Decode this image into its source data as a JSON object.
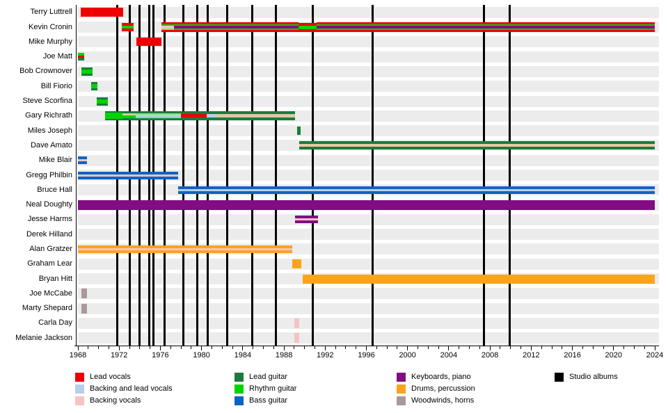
{
  "chart_data": {
    "type": "timeline",
    "x_axis": {
      "min": 1968,
      "max": 2024,
      "labels": [
        1968,
        1972,
        1976,
        1980,
        1984,
        1988,
        1992,
        1996,
        2000,
        2004,
        2008,
        2012,
        2016,
        2020,
        2024
      ],
      "minor_tick_every": 1
    },
    "palette": {
      "red": "#ee0000",
      "green": "#00d400",
      "palegreen": "#7fe97f",
      "darkgreen": "#1b7b3c",
      "blue": "#0d63c5",
      "lightblue": "#b7cdf0",
      "pink": "#f6c3c3",
      "purple": "#830b83",
      "orange": "#f8a51b",
      "woodwind": "#ab9999",
      "tan": "#d9c9a2",
      "peach": "#efc6a4",
      "black": "#000000"
    },
    "albums_years": [
      1971.8,
      1973.05,
      1973.95,
      1974.9,
      1975.35,
      1976.4,
      1978.2,
      1979.6,
      1980.6,
      1982.5,
      1984.95,
      1987.2,
      1990.8,
      1996.6,
      2007.4,
      2009.9
    ],
    "members": [
      {
        "name": "Terry Luttrell",
        "segments": [
          {
            "start": 1968.3,
            "end": 1972.4,
            "stripes": [
              [
                "red",
                13
              ]
            ]
          }
        ]
      },
      {
        "name": "Kevin Cronin",
        "segments": [
          {
            "start": 1972.25,
            "end": 1973.4,
            "stripes": [
              [
                "red",
                4
              ],
              [
                "green",
                4
              ],
              [
                "red",
                4
              ]
            ]
          },
          {
            "start": 1976.1,
            "end": 1977.3,
            "stripes": [
              [
                "red",
                3
              ],
              [
                "green",
                2
              ],
              [
                "pink",
                4
              ],
              [
                "palegreen",
                2
              ],
              [
                "red",
                3
              ]
            ]
          },
          {
            "start": 1977.3,
            "end": 1989.4,
            "stripes": [
              [
                "red",
                3
              ],
              [
                "green",
                2
              ],
              [
                "purple",
                4
              ],
              [
                "green",
                2
              ],
              [
                "red",
                3
              ]
            ]
          },
          {
            "start": 1989.4,
            "end": 1991.2,
            "stripes": [
              [
                "red",
                4
              ],
              [
                "green",
                5
              ],
              [
                "red",
                4
              ]
            ]
          },
          {
            "start": 1991.2,
            "end": 2024,
            "stripes": [
              [
                "red",
                3
              ],
              [
                "green",
                2
              ],
              [
                "purple",
                4
              ],
              [
                "green",
                2
              ],
              [
                "red",
                3
              ]
            ]
          }
        ]
      },
      {
        "name": "Mike Murphy",
        "segments": [
          {
            "start": 1973.7,
            "end": 1976.1,
            "stripes": [
              [
                "red",
                12
              ]
            ]
          }
        ]
      },
      {
        "name": "Joe Matt",
        "segments": [
          {
            "start": 1968.0,
            "end": 1968.6,
            "stripes": [
              [
                "green",
                4
              ],
              [
                "red",
                3
              ],
              [
                "darkgreen",
                4
              ]
            ]
          }
        ]
      },
      {
        "name": "Bob Crownover",
        "segments": [
          {
            "start": 1968.35,
            "end": 1969.4,
            "stripes": [
              [
                "darkgreen",
                3
              ],
              [
                "green",
                6
              ],
              [
                "darkgreen",
                3
              ]
            ]
          }
        ]
      },
      {
        "name": "Bill Fiorio",
        "segments": [
          {
            "start": 1969.3,
            "end": 1969.9,
            "stripes": [
              [
                "darkgreen",
                3
              ],
              [
                "green",
                6
              ],
              [
                "darkgreen",
                3
              ]
            ]
          }
        ]
      },
      {
        "name": "Steve Scorfina",
        "segments": [
          {
            "start": 1969.8,
            "end": 1970.9,
            "stripes": [
              [
                "darkgreen",
                3
              ],
              [
                "green",
                6
              ],
              [
                "darkgreen",
                3
              ]
            ]
          }
        ]
      },
      {
        "name": "Gary Richrath",
        "segments": [
          {
            "start": 1970.6,
            "end": 1972.3,
            "stripes": [
              [
                "darkgreen",
                2
              ],
              [
                "green",
                9
              ],
              [
                "darkgreen",
                2
              ]
            ]
          },
          {
            "start": 1972.3,
            "end": 1973.6,
            "stripes": [
              [
                "darkgreen",
                3
              ],
              [
                "tan",
                3
              ],
              [
                "green",
                4
              ],
              [
                "darkgreen",
                3
              ]
            ]
          },
          {
            "start": 1973.6,
            "end": 1978.0,
            "stripes": [
              [
                "darkgreen",
                3
              ],
              [
                "palegreen",
                2
              ],
              [
                "lightblue",
                3
              ],
              [
                "palegreen",
                2
              ],
              [
                "darkgreen",
                3
              ]
            ]
          },
          {
            "start": 1978.0,
            "end": 1980.5,
            "stripes": [
              [
                "darkgreen",
                4
              ],
              [
                "red",
                5
              ],
              [
                "darkgreen",
                4
              ]
            ]
          },
          {
            "start": 1980.5,
            "end": 1981.4,
            "stripes": [
              [
                "darkgreen",
                4
              ],
              [
                "lightblue",
                5
              ],
              [
                "darkgreen",
                4
              ]
            ]
          },
          {
            "start": 1981.4,
            "end": 1989.1,
            "stripes": [
              [
                "darkgreen",
                4
              ],
              [
                "tan",
                5
              ],
              [
                "darkgreen",
                4
              ]
            ]
          }
        ]
      },
      {
        "name": "Miles Joseph",
        "segments": [
          {
            "start": 1989.25,
            "end": 1989.6,
            "stripes": [
              [
                "darkgreen",
                12
              ]
            ]
          }
        ]
      },
      {
        "name": "Dave Amato",
        "segments": [
          {
            "start": 1989.5,
            "end": 2024,
            "stripes": [
              [
                "darkgreen",
                4
              ],
              [
                "peach",
                4
              ],
              [
                "darkgreen",
                4
              ]
            ]
          }
        ]
      },
      {
        "name": "Mike Blair",
        "segments": [
          {
            "start": 1968.0,
            "end": 1968.9,
            "stripes": [
              [
                "blue",
                4
              ],
              [
                "pink",
                3
              ],
              [
                "blue",
                4
              ]
            ]
          }
        ]
      },
      {
        "name": "Gregg Philbin",
        "segments": [
          {
            "start": 1968.0,
            "end": 1977.7,
            "stripes": [
              [
                "blue",
                4
              ],
              [
                "pink",
                3
              ],
              [
                "blue",
                4
              ]
            ]
          }
        ]
      },
      {
        "name": "Bruce Hall",
        "segments": [
          {
            "start": 1977.7,
            "end": 2024,
            "stripes": [
              [
                "blue",
                4
              ],
              [
                "lightblue",
                3
              ],
              [
                "blue",
                4
              ]
            ]
          }
        ]
      },
      {
        "name": "Neal Doughty",
        "segments": [
          {
            "start": 1968.0,
            "end": 2024,
            "stripes": [
              [
                "purple",
                14
              ]
            ]
          }
        ]
      },
      {
        "name": "Jesse Harms",
        "segments": [
          {
            "start": 1989.1,
            "end": 1991.3,
            "stripes": [
              [
                "purple",
                4
              ],
              [
                "pink",
                3
              ],
              [
                "purple",
                4
              ]
            ]
          }
        ]
      },
      {
        "name": "Derek Hilland",
        "segments": []
      },
      {
        "name": "Alan Gratzer",
        "segments": [
          {
            "start": 1968.0,
            "end": 1988.8,
            "stripes": [
              [
                "orange",
                4
              ],
              [
                "pink",
                3
              ],
              [
                "orange",
                4
              ]
            ]
          }
        ]
      },
      {
        "name": "Graham Lear",
        "segments": [
          {
            "start": 1988.8,
            "end": 1989.7,
            "stripes": [
              [
                "orange",
                13
              ]
            ]
          }
        ]
      },
      {
        "name": "Bryan Hitt",
        "segments": [
          {
            "start": 1989.8,
            "end": 2024,
            "stripes": [
              [
                "orange",
                13
              ]
            ]
          }
        ]
      },
      {
        "name": "Joe McCabe",
        "segments": [
          {
            "start": 1968.35,
            "end": 1968.85,
            "stripes": [
              [
                "woodwind",
                14
              ]
            ]
          }
        ]
      },
      {
        "name": "Marty Shepard",
        "segments": [
          {
            "start": 1968.35,
            "end": 1968.85,
            "stripes": [
              [
                "woodwind",
                14
              ]
            ]
          }
        ]
      },
      {
        "name": "Carla Day",
        "segments": [
          {
            "start": 1989.0,
            "end": 1989.45,
            "stripes": [
              [
                "pink",
                14
              ]
            ]
          }
        ]
      },
      {
        "name": "Melanie Jackson",
        "segments": [
          {
            "start": 1989.0,
            "end": 1989.45,
            "stripes": [
              [
                "pink",
                14
              ]
            ]
          }
        ]
      }
    ],
    "legend": {
      "columns": [
        [
          {
            "color": "red",
            "label": "Lead vocals"
          },
          {
            "color": "lightblue",
            "label": "Backing and lead vocals"
          },
          {
            "color": "pink",
            "label": "Backing vocals"
          }
        ],
        [
          {
            "color": "darkgreen",
            "label": "Lead guitar"
          },
          {
            "color": "green",
            "label": "Rhythm guitar"
          },
          {
            "color": "blue",
            "label": "Bass guitar"
          }
        ],
        [
          {
            "color": "purple",
            "label": "Keyboards, piano"
          },
          {
            "color": "orange",
            "label": "Drums, percussion"
          },
          {
            "color": "woodwind",
            "label": "Woodwinds, horns"
          }
        ],
        [
          {
            "color": "black",
            "label": "Studio albums"
          }
        ]
      ]
    }
  }
}
